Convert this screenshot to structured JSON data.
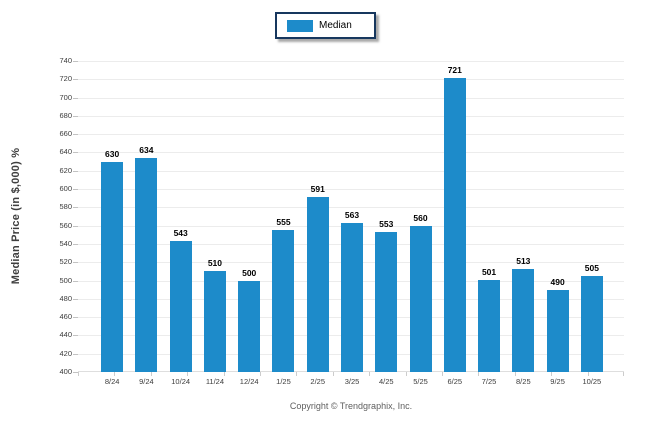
{
  "legend": {
    "label": "Median",
    "swatch_color": "#1d8bca"
  },
  "footer": {
    "copyright": "Copyright © Trendgraphix, Inc."
  },
  "colors": {
    "bar": "#1d8bca",
    "legend_border": "#17375e",
    "gridline": "#ececec",
    "tick_text": "#3c3c3c",
    "footer_text": "#5f5f5f"
  },
  "chart_data": {
    "type": "bar",
    "title": "",
    "categories": [
      "8/24",
      "9/24",
      "10/24",
      "11/24",
      "12/24",
      "1/25",
      "2/25",
      "3/25",
      "4/25",
      "5/25",
      "6/25",
      "7/25",
      "8/25",
      "9/25",
      "10/25"
    ],
    "series": [
      {
        "name": "Median",
        "color": "#1d8bca",
        "values": [
          630,
          634,
          543,
          510,
          500,
          555,
          591,
          563,
          553,
          560,
          721,
          501,
          513,
          490,
          505
        ]
      }
    ],
    "xlabel": "",
    "ylabel": "Median Price (in $,000) %",
    "ylim": [
      400,
      740
    ],
    "ytick_step": 20,
    "grid": true,
    "value_labels": true,
    "legend_position": "top-center"
  }
}
